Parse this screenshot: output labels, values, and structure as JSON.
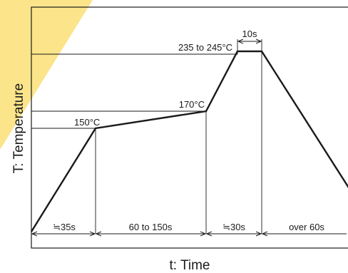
{
  "accent_color": "#fbe48a",
  "chart_data": {
    "type": "line",
    "title": "",
    "xlabel": "t: Time",
    "ylabel": "T: Temperature",
    "grid": false,
    "temperature_labels": [
      {
        "id": "peak",
        "text": "235 to 245°C"
      },
      {
        "id": "preheat-end",
        "text": "170°C"
      },
      {
        "id": "preheat-start",
        "text": "150°C"
      }
    ],
    "phase_durations": [
      {
        "id": "ramp-up",
        "text": "≒35s"
      },
      {
        "id": "preheat",
        "text": "60 to 150s"
      },
      {
        "id": "ramp-to-peak",
        "text": "≒30s"
      },
      {
        "id": "cool-down",
        "text": "over 60s"
      }
    ],
    "peak_duration": "10s",
    "profile_points": [
      {
        "phase": "start",
        "temp": null
      },
      {
        "phase": "preheat-start",
        "temp": 150
      },
      {
        "phase": "preheat-end",
        "temp": 170
      },
      {
        "phase": "peak-start",
        "temp": 240
      },
      {
        "phase": "peak-end",
        "temp": 240
      },
      {
        "phase": "end",
        "temp": null
      }
    ]
  }
}
